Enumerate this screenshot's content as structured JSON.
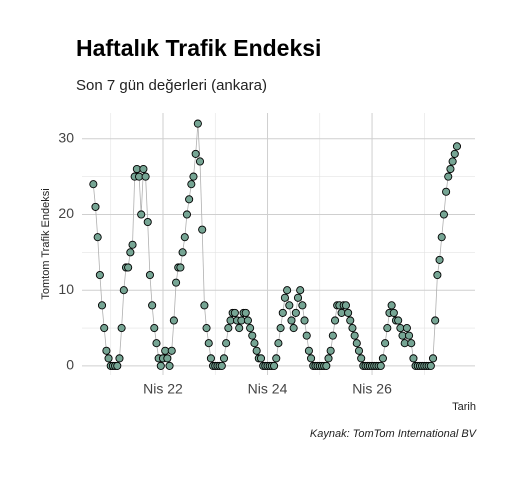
{
  "chart_data": {
    "type": "scatter",
    "title": "Haftalık Trafik Endeksi",
    "subtitle": "Son 7 gün değerleri (ankara)",
    "y_label": "Tomtom Trafik Endeksi",
    "x_label": "Tarih",
    "caption": "Kaynak: TomTom International BV",
    "color": "#76a594",
    "line_color": "#b0b0b0",
    "grid": true,
    "xlim": [
      20.45,
      27.97
    ],
    "ylim": [
      -1.2,
      33.4
    ],
    "xticks": [
      {
        "value": 22,
        "label": "Nis 22"
      },
      {
        "value": 24,
        "label": "Nis 24"
      },
      {
        "value": 26,
        "label": "Nis 26"
      }
    ],
    "xminor": [
      21,
      23,
      25,
      27
    ],
    "yticks": [
      0,
      10,
      20,
      30
    ],
    "yminor": [
      5,
      15,
      25
    ],
    "x": [
      20.667,
      20.708,
      20.75,
      20.792,
      20.833,
      20.875,
      20.917,
      20.958,
      21.0,
      21.042,
      21.083,
      21.125,
      21.167,
      21.208,
      21.25,
      21.292,
      21.333,
      21.375,
      21.417,
      21.458,
      21.5,
      21.542,
      21.583,
      21.625,
      21.667,
      21.708,
      21.75,
      21.792,
      21.833,
      21.875,
      21.917,
      21.958,
      22.0,
      22.042,
      22.083,
      22.125,
      22.167,
      22.208,
      22.25,
      22.292,
      22.333,
      22.375,
      22.417,
      22.458,
      22.5,
      22.542,
      22.583,
      22.625,
      22.667,
      22.708,
      22.75,
      22.792,
      22.833,
      22.875,
      22.917,
      22.958,
      23.0,
      23.042,
      23.083,
      23.125,
      23.167,
      23.208,
      23.25,
      23.292,
      23.333,
      23.375,
      23.417,
      23.458,
      23.5,
      23.542,
      23.583,
      23.625,
      23.667,
      23.708,
      23.75,
      23.792,
      23.833,
      23.875,
      23.917,
      23.958,
      24.0,
      24.042,
      24.083,
      24.125,
      24.167,
      24.208,
      24.25,
      24.292,
      24.333,
      24.375,
      24.417,
      24.458,
      24.5,
      24.542,
      24.583,
      24.625,
      24.667,
      24.708,
      24.75,
      24.792,
      24.833,
      24.875,
      24.917,
      24.958,
      25.0,
      25.042,
      25.083,
      25.125,
      25.167,
      25.208,
      25.25,
      25.292,
      25.333,
      25.375,
      25.417,
      25.458,
      25.5,
      25.542,
      25.583,
      25.625,
      25.667,
      25.708,
      25.75,
      25.792,
      25.833,
      25.875,
      25.917,
      25.958,
      26.0,
      26.042,
      26.083,
      26.125,
      26.167,
      26.208,
      26.25,
      26.292,
      26.333,
      26.375,
      26.417,
      26.458,
      26.5,
      26.542,
      26.583,
      26.625,
      26.667,
      26.708,
      26.75,
      26.792,
      26.833,
      26.875,
      26.917,
      26.958,
      27.0,
      27.042,
      27.083,
      27.125,
      27.167,
      27.208,
      27.25,
      27.292,
      27.333,
      27.375,
      27.417,
      27.458,
      27.5,
      27.542,
      27.583,
      27.625
    ],
    "values": [
      24,
      21,
      17,
      12,
      8,
      5,
      2,
      1,
      0,
      0,
      0,
      0,
      1,
      5,
      10,
      13,
      13,
      15,
      16,
      25,
      26,
      25,
      20,
      26,
      25,
      19,
      12,
      8,
      5,
      3,
      1,
      0,
      1,
      2,
      1,
      0,
      2,
      6,
      11,
      13,
      13,
      15,
      17,
      20,
      22,
      24,
      25,
      28,
      32,
      27,
      18,
      8,
      5,
      3,
      1,
      0,
      0,
      0,
      0,
      0,
      1,
      3,
      5,
      6,
      7,
      7,
      6,
      5,
      6,
      7,
      7,
      6,
      5,
      4,
      3,
      2,
      1,
      1,
      0,
      0,
      0,
      0,
      0,
      0,
      1,
      3,
      5,
      7,
      9,
      10,
      8,
      6,
      5,
      7,
      9,
      10,
      8,
      6,
      4,
      2,
      1,
      0,
      0,
      0,
      0,
      0,
      0,
      0,
      1,
      2,
      4,
      6,
      8,
      8,
      7,
      8,
      8,
      7,
      6,
      5,
      4,
      3,
      2,
      1,
      0,
      0,
      0,
      0,
      0,
      0,
      0,
      0,
      0,
      1,
      3,
      5,
      7,
      8,
      7,
      6,
      6,
      5,
      4,
      3,
      5,
      4,
      3,
      1,
      0,
      0,
      0,
      0,
      0,
      0,
      0,
      0,
      1,
      6,
      12,
      14,
      17,
      20,
      23,
      25,
      26,
      27,
      28,
      29
    ]
  }
}
